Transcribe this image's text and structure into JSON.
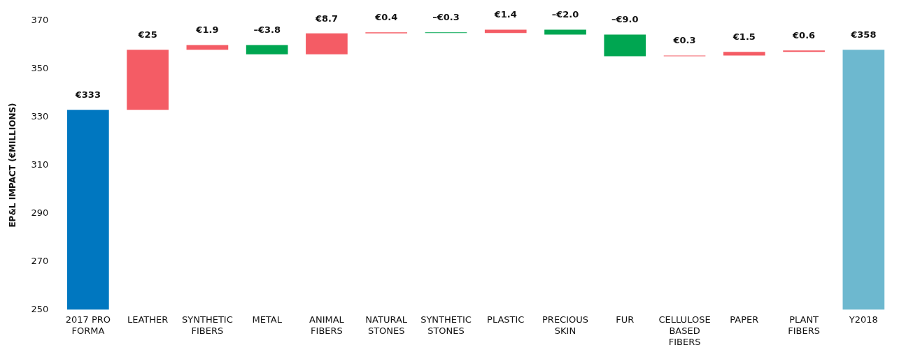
{
  "chart_data": {
    "type": "bar",
    "ylabel": "EP&L IMPACT (€MILLIONS)",
    "categories": [
      "2017 PRO FORMA",
      "LEATHER",
      "SYNTHETIC FIBERS",
      "METAL",
      "ANIMAL FIBERS",
      "NATURAL STONES",
      "SYNTHETIC STONES",
      "PLASTIC",
      "PRECIOUS SKIN",
      "FUR",
      "CELLULOSE BASED FIBERS",
      "PAPER",
      "PLANT FIBERS",
      "Y2018"
    ],
    "values": [
      333,
      25,
      1.9,
      -3.8,
      8.7,
      0.4,
      -0.3,
      1.4,
      -2.0,
      -9.0,
      0.3,
      1.5,
      0.6,
      358
    ],
    "base": [
      null,
      333,
      358,
      359.9,
      356.1,
      364.8,
      365.2,
      364.9,
      366.3,
      364.3,
      355.3,
      355.6,
      357.1,
      null
    ],
    "colors": [
      "#0077c0",
      "#f45c65",
      "#f45c65",
      "#00a651",
      "#f45c65",
      "#f45c65",
      "#00a651",
      "#f45c65",
      "#00a651",
      "#00a651",
      "#f45c65",
      "#f45c65",
      "#f45c65",
      "#6db8cf"
    ],
    "value_labels": [
      "€333",
      "€25",
      "€1.9",
      "–€3.8",
      "€8.7",
      "€0.4",
      "–€0.3",
      "€1.4",
      "–€2.0",
      "–€9.0",
      "€0.3",
      "€1.5",
      "€0.6",
      "€358"
    ],
    "ylim": [
      250,
      370
    ],
    "yticks": [
      250,
      270,
      290,
      310,
      330,
      350,
      370
    ],
    "grid": false,
    "legend": false
  }
}
